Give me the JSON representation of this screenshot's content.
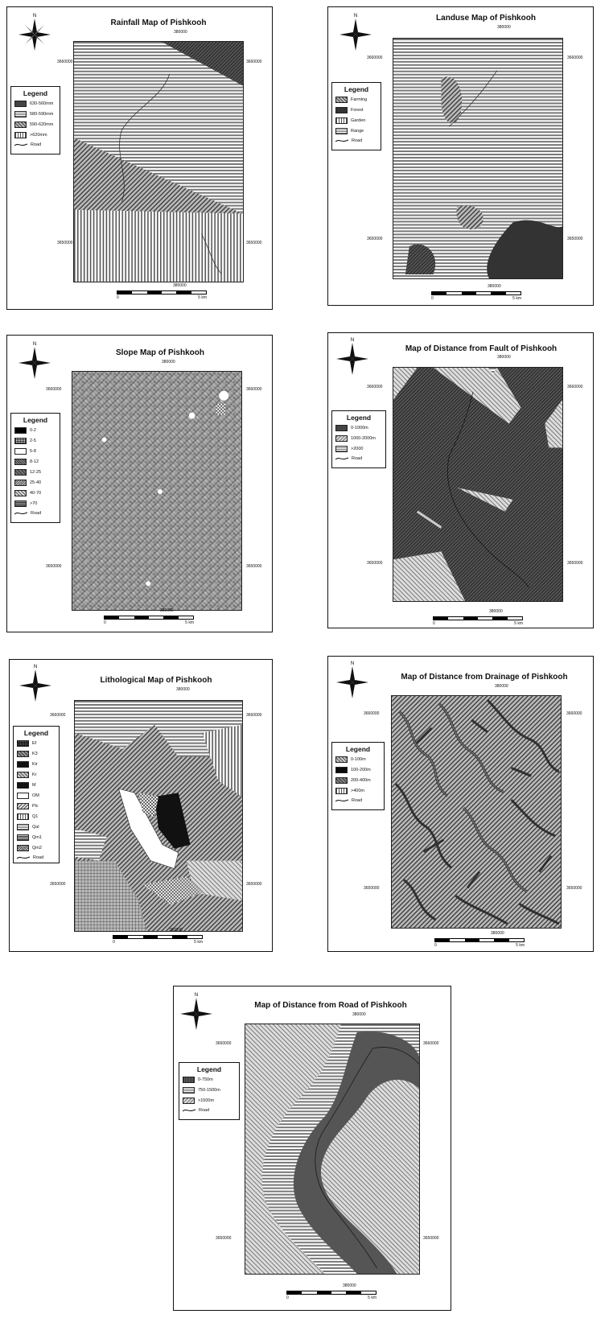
{
  "panels": [
    {
      "id": "rainfall",
      "title": "Rainfall Map of Pishkooh",
      "x_label": "380000",
      "y_top": "3660000",
      "y_bottom": "3650000",
      "legend_title": "Legend",
      "legend": [
        "630-560mm",
        "580-590mm",
        "590-620mm",
        ">620mm"
      ],
      "road_label": "Road",
      "scale": {
        "zero": "0",
        "end": "5 km"
      }
    },
    {
      "id": "landuse",
      "title": "Landuse Map of Pishkooh",
      "x_label": "380000",
      "y_top": "3660000",
      "y_bottom": "3650000",
      "legend_title": "Legend",
      "legend": [
        "Farming",
        "Forest",
        "Garden",
        "Range"
      ],
      "road_label": "Road",
      "scale": {
        "zero": "0",
        "end": "5 km"
      }
    },
    {
      "id": "slope",
      "title": "Slope Map of Pishkooh",
      "x_label": "380000",
      "y_top": "3660000",
      "y_bottom": "3650000",
      "legend_title": "Legend",
      "legend": [
        "0-2",
        "2-5",
        "5-8",
        "8-12",
        "12-25",
        "25-40",
        "40-70",
        ">70"
      ],
      "road_label": "Road",
      "scale": {
        "zero": "0",
        "end": "5 km"
      }
    },
    {
      "id": "fault",
      "title": "Map of Distance from Fault of Pishkooh",
      "x_label": "380000",
      "y_top": "3660000",
      "y_bottom": "3650000",
      "legend_title": "Legend",
      "legend": [
        "0-1000m",
        "1000-2000m",
        ">2000"
      ],
      "road_label": "Road",
      "scale": {
        "zero": "0",
        "end": "5 km"
      }
    },
    {
      "id": "litho",
      "title": "Lithological Map of Pishkooh",
      "x_label": "380000",
      "y_top": "3660000",
      "y_bottom": "3650000",
      "legend_title": "Legend",
      "legend": [
        "Ef",
        "K3",
        "Kir",
        "Kr",
        "M",
        "OM",
        "Plc",
        "Q1",
        "Qal",
        "Qm1",
        "Qm2"
      ],
      "road_label": "Road",
      "scale": {
        "zero": "0",
        "end": "5 km"
      }
    },
    {
      "id": "drainage",
      "title": "Map of Distance from Drainage of Pishkooh",
      "x_label": "380000",
      "y_top": "3660000",
      "y_bottom": "3650000",
      "legend_title": "Legend",
      "legend": [
        "0-100m",
        "100-200m",
        "200-400m",
        ">400m"
      ],
      "road_label": "Road",
      "scale": {
        "zero": "0",
        "end": "5 km"
      }
    },
    {
      "id": "road",
      "title": "Map of Distance from Road of Pishkooh",
      "x_label": "380000",
      "y_top": "3660000",
      "y_bottom": "3650000",
      "legend_title": "Legend",
      "legend": [
        "0-750m",
        "750-1500m",
        ">1500m"
      ],
      "road_label": "Road",
      "scale": {
        "zero": "0",
        "end": "5 km"
      }
    }
  ],
  "north_label": "N"
}
